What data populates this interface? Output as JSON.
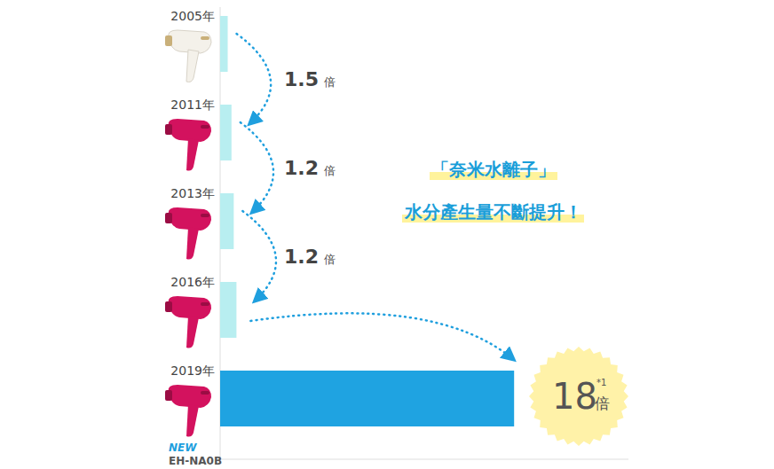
{
  "chart_data": {
    "type": "bar",
    "orientation": "horizontal",
    "title": "「奈米水離子」",
    "subtitle": "水分產生量不斷提升！",
    "categories": [
      "2005年",
      "2011年",
      "2013年",
      "2016年",
      "2019年"
    ],
    "values": [
      1,
      1.5,
      1.8,
      2.16,
      38.88
    ],
    "colors": [
      "#b8eef0",
      "#b8eef0",
      "#b8eef0",
      "#b8eef0",
      "#1fa3e1"
    ],
    "xlim": [
      0,
      54
    ],
    "tick_labels": "y",
    "grid": false,
    "multipliers": [
      1.5,
      1.2,
      1.2,
      18
    ],
    "multiplier_unit": "倍",
    "footnote_mark": "*1",
    "model_badge": "NEW",
    "model_name": "EH-NA0B"
  }
}
